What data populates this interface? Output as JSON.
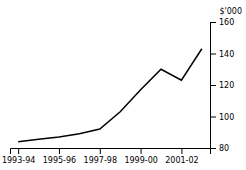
{
  "chart_data": {
    "type": "line",
    "ylabel": "$'000",
    "categories": [
      "1993-94",
      null,
      "1995-96",
      null,
      "1997-98",
      null,
      "1999-00",
      null,
      "2001-02",
      null
    ],
    "values": [
      84,
      85.5,
      87,
      89,
      92,
      103,
      117,
      130,
      123,
      143
    ],
    "color": "#000000",
    "ylim": [
      80,
      160
    ],
    "yticks": [
      80,
      100,
      120,
      140,
      160
    ],
    "grid": false
  }
}
